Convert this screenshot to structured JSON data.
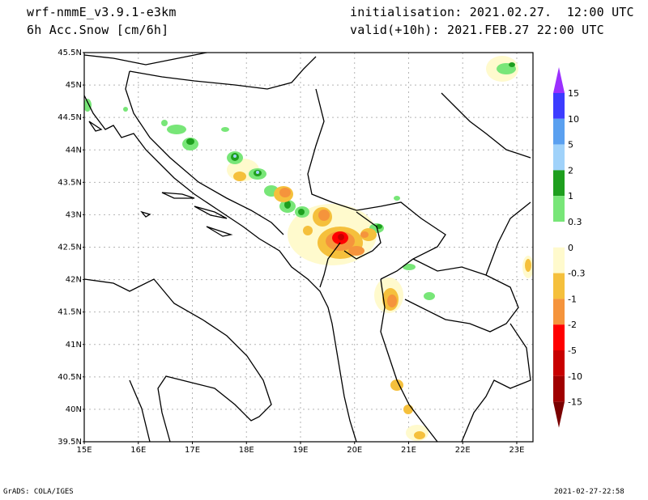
{
  "header": {
    "model": "wrf-nmmE_v3.9.1-e3km",
    "variable": "6h Acc.Snow [cm/6h]",
    "initialisation": "initialisation: 2021.02.27.  12:00 UTC",
    "valid": "valid(+10h): 2021.FEB.27 22:00 UTC"
  },
  "map": {
    "lat_labels": [
      "45.5N",
      "45N",
      "44.5N",
      "44N",
      "43.5N",
      "43N",
      "42.5N",
      "42N",
      "41.5N",
      "41N",
      "40.5N",
      "40N",
      "39.5N"
    ],
    "lon_labels": [
      "15E",
      "16E",
      "17E",
      "18E",
      "19E",
      "20E",
      "21E",
      "22E",
      "23E"
    ],
    "grid": true,
    "projection": "lat-lon"
  },
  "colorbar": {
    "labels": [
      "15",
      "10",
      "5",
      "2",
      "1",
      "0.3",
      "0",
      "-0.3",
      "-1",
      "-2",
      "-5",
      "-10",
      "-15"
    ],
    "colors": [
      "#9b30ff",
      "#3c3cff",
      "#5aa0f0",
      "#a0d2fa",
      "#1e9f1e",
      "#78e678",
      "#ffffff",
      "#fffacd",
      "#f5c03c",
      "#f5943c",
      "#ff0000",
      "#c80000",
      "#a00000",
      "#7a0000"
    ]
  },
  "footer": {
    "left": "GrADS: COLA/IGES",
    "right": "2021-02-27-22:58"
  }
}
